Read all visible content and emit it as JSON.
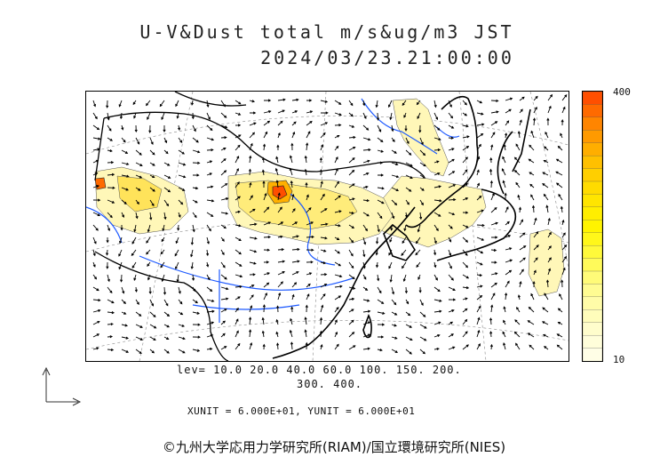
{
  "header": {
    "title_line1": "U-V&Dust total m/s&ug/m3 JST",
    "title_line2": "2024/03/23.21:00:00"
  },
  "colorbar": {
    "max_label": "400",
    "min_label": "10",
    "colors": [
      "#ff4f00",
      "#ff6a00",
      "#ff8500",
      "#ff9a00",
      "#ffae00",
      "#ffc000",
      "#ffcf00",
      "#ffdb00",
      "#ffe500",
      "#ffee00",
      "#fff400",
      "#fff71a",
      "#fff93a",
      "#fffa5a",
      "#fffb78",
      "#fffc92",
      "#fffca8",
      "#fffdbb",
      "#fffdcc",
      "#fffeda",
      "#fffee6"
    ]
  },
  "levels": {
    "line1": "lev= 10.0 20.0 40.0 60.0 100. 150. 200.",
    "line2": "300. 400."
  },
  "units": "XUNIT = 6.000E+01, YUNIT = 6.000E+01",
  "credit": "©九州大学応用力学研究所(RIAM)/国立環境研究所(NIES)",
  "map_colors": {
    "coast": "#000000",
    "rivers": "#1e5aff",
    "dust_light": "#fff7b8",
    "dust_mid": "#ffe35a",
    "dust_high": "#ffb000",
    "dust_peak": "#ff4e00"
  }
}
